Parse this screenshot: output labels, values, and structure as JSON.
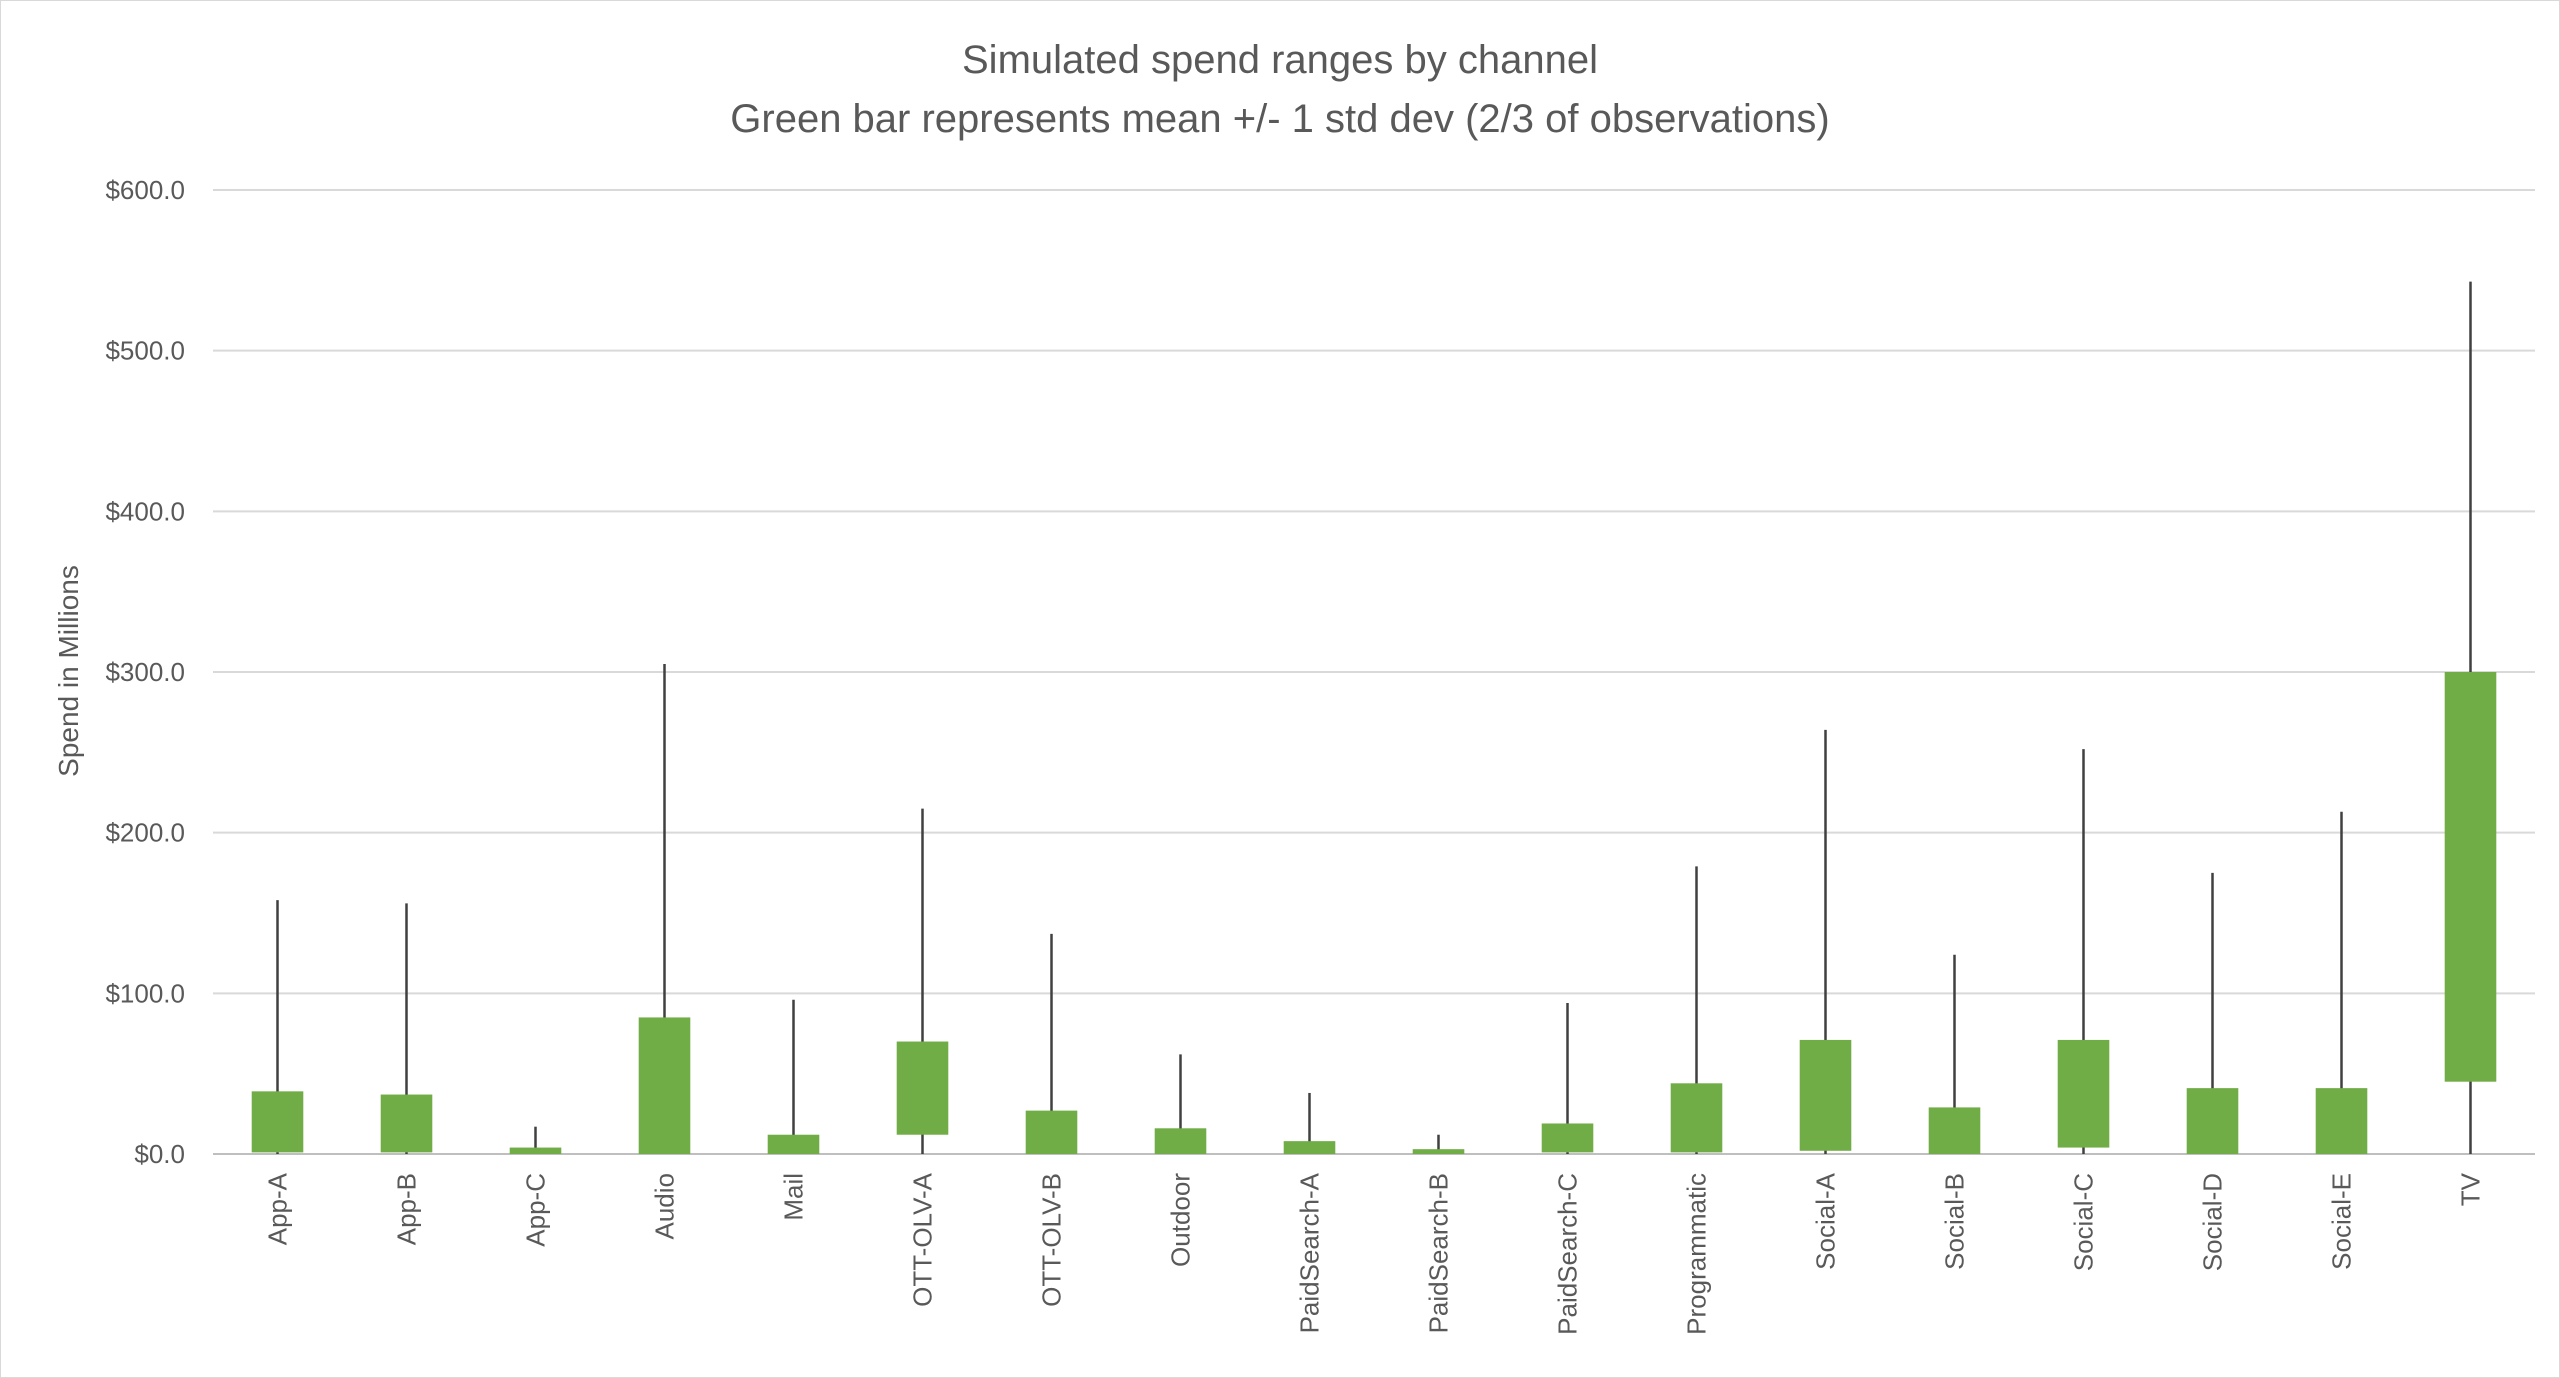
{
  "chart_data": {
    "type": "bar",
    "title": "Simulated spend ranges by channel",
    "subtitle": "Green bar represents mean +/- 1 std dev (2/3 of observations)",
    "ylabel": "Spend in Millions",
    "xlabel": "",
    "ylim": [
      0,
      600
    ],
    "yticks": [
      0,
      100,
      200,
      300,
      400,
      500,
      600
    ],
    "ytick_labels": [
      "$0.0",
      "$100.0",
      "$200.0",
      "$300.0",
      "$400.0",
      "$500.0",
      "$600.0"
    ],
    "grid": "horizontal",
    "bar_color": "#70ad47",
    "whisker_color": "#404040",
    "categories": [
      "App-A",
      "App-B",
      "App-C",
      "Audio",
      "Mail",
      "OTT-OLV-A",
      "OTT-OLV-B",
      "Outdoor",
      "PaidSearch-A",
      "PaidSearch-B",
      "PaidSearch-C",
      "Programmatic",
      "Social-A",
      "Social-B",
      "Social-C",
      "Social-D",
      "Social-E",
      "TV"
    ],
    "series": [
      {
        "name": "mean +/- 1 std dev",
        "low": [
          1,
          1,
          0,
          0,
          0,
          12,
          0,
          0,
          0,
          0,
          1,
          1,
          2,
          0,
          4,
          0,
          0,
          45
        ],
        "high": [
          39,
          37,
          4,
          85,
          12,
          70,
          27,
          16,
          8,
          3,
          19,
          44,
          71,
          29,
          71,
          41,
          41,
          300
        ]
      },
      {
        "name": "range",
        "min": [
          0,
          0,
          0,
          0,
          0,
          0,
          0,
          0,
          0,
          0,
          0,
          0,
          0,
          0,
          0,
          0,
          0,
          0
        ],
        "max": [
          158,
          156,
          17,
          305,
          96,
          215,
          137,
          62,
          38,
          12,
          94,
          179,
          264,
          124,
          252,
          175,
          213,
          543
        ]
      }
    ]
  }
}
